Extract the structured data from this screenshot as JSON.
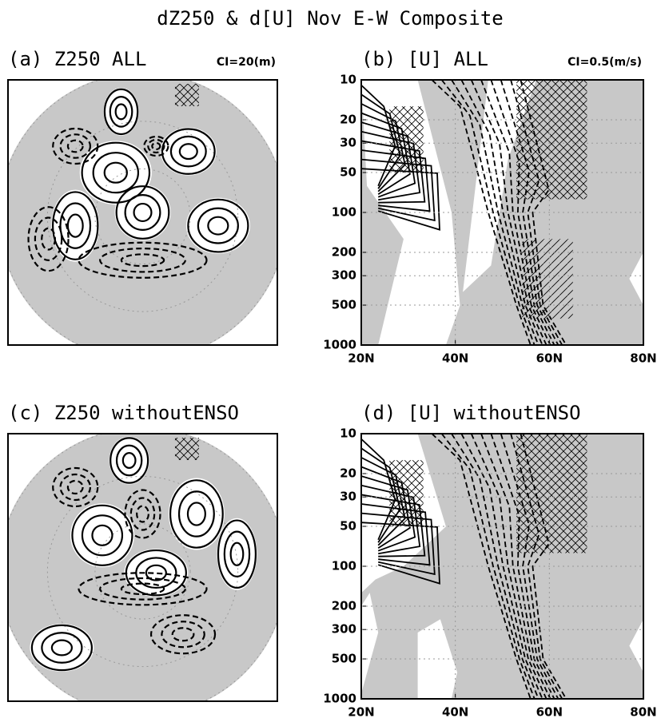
{
  "title": "dZ250 & d[U] Nov E-W Composite",
  "chart_data": [
    {
      "type": "polar-map",
      "title": "(a) Z250 ALL",
      "annotation": "CI=20(m)"
    },
    {
      "type": "zonal-section",
      "title": "(b) [U] ALL",
      "annotation": "CI=0.5(m/s)",
      "xlim": [
        20,
        80
      ],
      "xticks": [
        {
          "value": 20,
          "label": "20N"
        },
        {
          "value": 40,
          "label": "40N"
        },
        {
          "value": 60,
          "label": "60N"
        },
        {
          "value": 80,
          "label": "80N"
        }
      ],
      "ylim": [
        1000,
        10
      ],
      "yticks": [
        10,
        20,
        30,
        50,
        100,
        200,
        300,
        500,
        1000
      ],
      "log_y": true,
      "grid": true
    },
    {
      "type": "polar-map",
      "title": "(c) Z250 withoutENSO"
    },
    {
      "type": "zonal-section",
      "title": "(d) [U] withoutENSO",
      "xlim": [
        20,
        80
      ],
      "xticks": [
        {
          "value": 20,
          "label": "20N"
        },
        {
          "value": 40,
          "label": "40N"
        },
        {
          "value": 60,
          "label": "60N"
        },
        {
          "value": 80,
          "label": "80N"
        }
      ],
      "ylim": [
        1000,
        10
      ],
      "yticks": [
        10,
        20,
        30,
        50,
        100,
        200,
        300,
        500,
        1000
      ],
      "log_y": true,
      "grid": true
    }
  ]
}
